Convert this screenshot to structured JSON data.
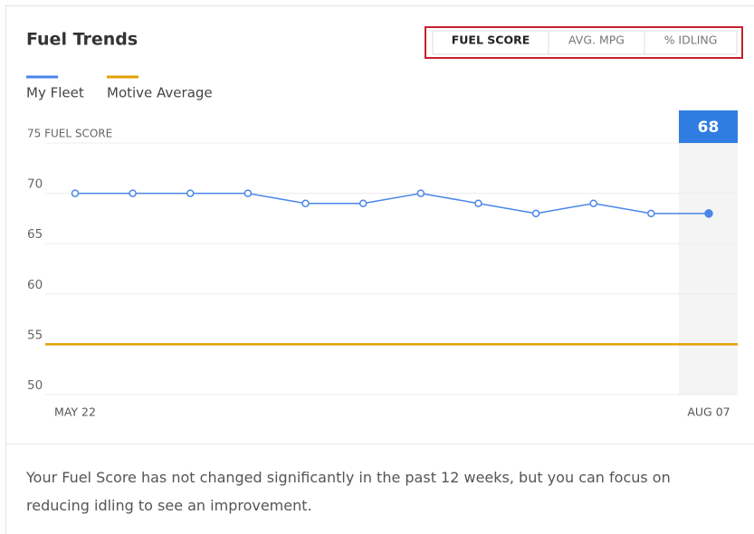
{
  "title": "Fuel Trends",
  "tabs": [
    {
      "label": "FUEL SCORE",
      "active": true
    },
    {
      "label": "AVG. MPG",
      "active": false
    },
    {
      "label": "% IDLING",
      "active": false
    }
  ],
  "chart_data": {
    "type": "line",
    "categories": [
      "MAY 22",
      null,
      null,
      null,
      null,
      null,
      null,
      null,
      null,
      null,
      null,
      "AUG 07"
    ],
    "series": [
      {
        "name": "My Fleet",
        "color": "#4a86e8",
        "values": [
          70,
          70,
          70,
          70,
          69,
          69,
          70,
          69,
          68,
          69,
          68,
          68
        ]
      },
      {
        "name": "Motive Average",
        "color": "#e0a100",
        "values": [
          55,
          55,
          55,
          55,
          55,
          55,
          55,
          55,
          55,
          55,
          55,
          55
        ]
      }
    ],
    "ylim": [
      50,
      75
    ],
    "yticks": [
      50,
      55,
      60,
      65,
      70,
      {
        "value": 75,
        "label": "75 FUEL SCORE"
      }
    ],
    "grid": true
  },
  "footer": "Your Fuel Score has not changed significantly in the past 12 weeks, but you can focus on reducing idling to see an improvement."
}
